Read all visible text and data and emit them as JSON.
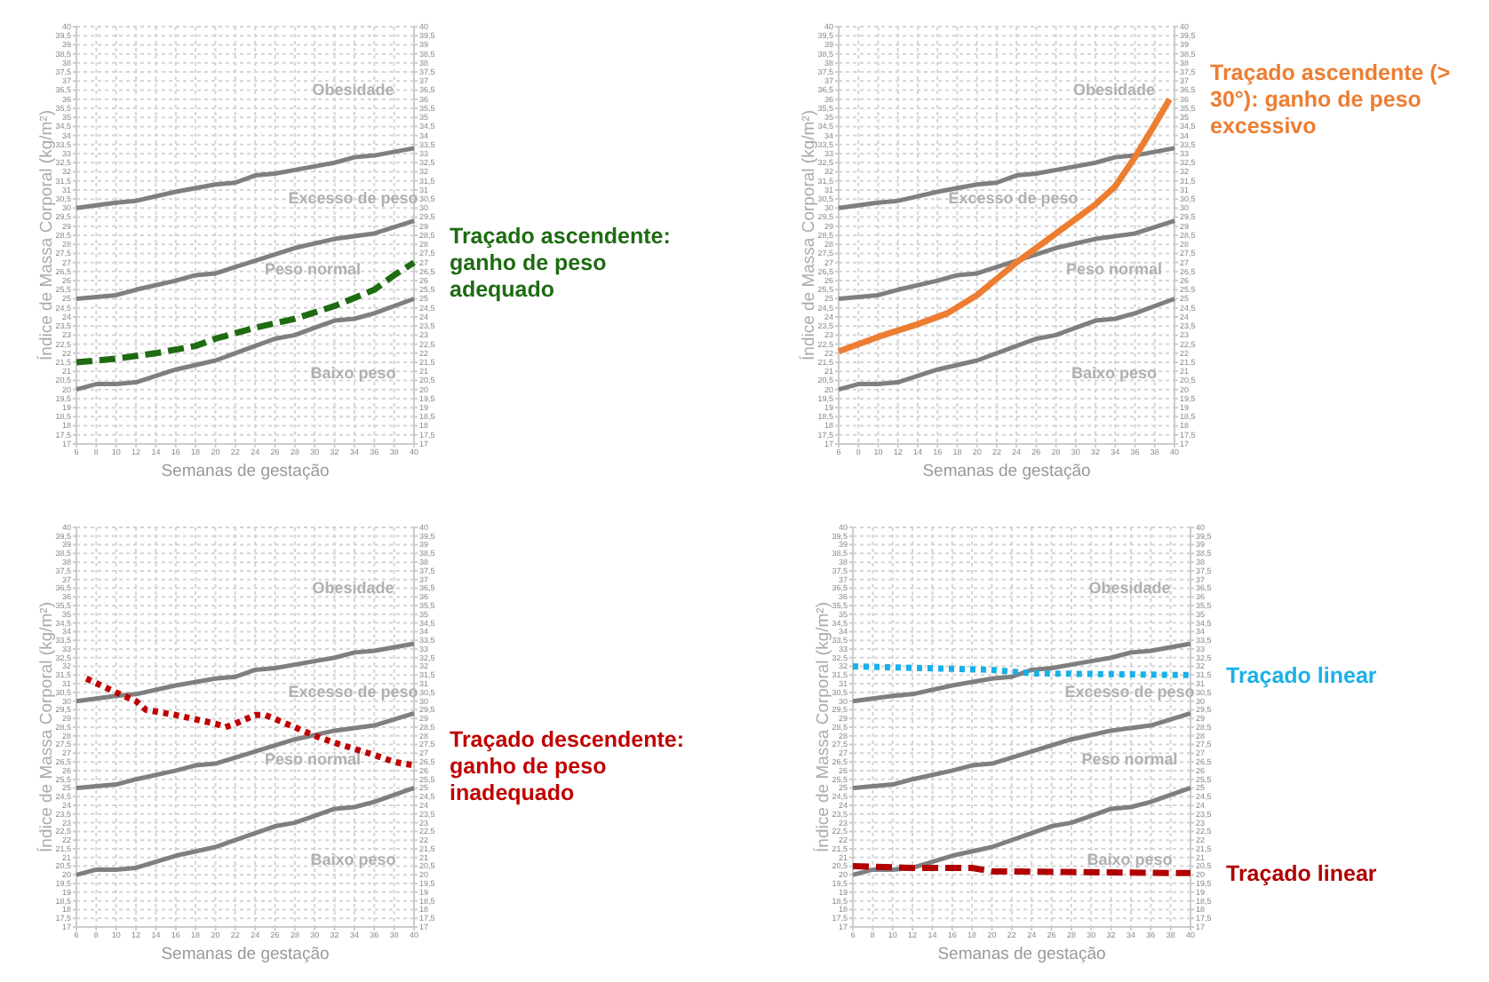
{
  "chart_data": [
    {
      "type": "line",
      "xlabel": "Semanas de gestação",
      "ylabel": "Índice de Massa Corporal (kg/m²)",
      "grid": true,
      "xlim": [
        6,
        40
      ],
      "xticks": [
        6,
        8,
        10,
        12,
        14,
        16,
        18,
        20,
        22,
        24,
        26,
        28,
        30,
        32,
        34,
        36,
        38,
        40
      ],
      "ylim": [
        17,
        40
      ],
      "yticks": [
        17,
        {
          "value": 17.5,
          "label": "17,5"
        },
        18,
        {
          "value": 18.5,
          "label": "18,5"
        },
        19,
        {
          "value": 19.5,
          "label": "19,5"
        },
        20,
        {
          "value": 20.5,
          "label": "20,5"
        },
        21,
        {
          "value": 21.5,
          "label": "21,5"
        },
        22,
        {
          "value": 22.5,
          "label": "22,5"
        },
        23,
        {
          "value": 23.5,
          "label": "23,5"
        },
        24,
        {
          "value": 24.5,
          "label": "24,5"
        },
        25,
        {
          "value": 25.5,
          "label": "25,5"
        },
        26,
        {
          "value": 26.5,
          "label": "26,5"
        },
        27,
        {
          "value": 27.5,
          "label": "27,5"
        },
        28,
        {
          "value": 28.5,
          "label": "28,5"
        },
        29,
        {
          "value": 29.5,
          "label": "29,5"
        },
        30,
        {
          "value": 30.5,
          "label": "30,5"
        },
        31,
        {
          "value": 31.5,
          "label": "31,5"
        },
        32,
        {
          "value": 32.5,
          "label": "32,5"
        },
        33,
        {
          "value": 33.5,
          "label": "33,5"
        },
        34,
        {
          "value": 34.5,
          "label": "34,5"
        },
        35,
        {
          "value": 35.5,
          "label": "35,5"
        },
        36,
        {
          "value": 36.5,
          "label": "36,5"
        },
        37,
        {
          "value": 37.5,
          "label": "37,5"
        },
        38,
        {
          "value": 38.5,
          "label": "38,5"
        },
        39,
        {
          "value": 39.5,
          "label": "39,5"
        },
        40
      ],
      "y2lim": [
        17,
        40
      ],
      "y2ticks": [
        17,
        {
          "value": 17.5,
          "label": "17,5"
        },
        18,
        {
          "value": 18.5,
          "label": "18,5"
        },
        19,
        {
          "value": 19.5,
          "label": "19,5"
        },
        20,
        {
          "value": 20.5,
          "label": "20,5"
        },
        21,
        {
          "value": 21.5,
          "label": "21,5"
        },
        22,
        {
          "value": 22.5,
          "label": "22,5"
        },
        23,
        {
          "value": 23.5,
          "label": "23,5"
        },
        24,
        {
          "value": 24.5,
          "label": "24,5"
        },
        25,
        {
          "value": 25.5,
          "label": "25,5"
        },
        26,
        {
          "value": 26.5,
          "label": "26,5"
        },
        27,
        {
          "value": 27.5,
          "label": "27,5"
        },
        28,
        {
          "value": 28.5,
          "label": "28,5"
        },
        29,
        {
          "value": 29.5,
          "label": "29,5"
        },
        30,
        {
          "value": 30.5,
          "label": "30,5"
        },
        31,
        {
          "value": 31.5,
          "label": "31,5"
        },
        32,
        {
          "value": 32.5,
          "label": "32,5"
        },
        33,
        {
          "value": 33.5,
          "label": "33,5"
        },
        34,
        {
          "value": 34.5,
          "label": "34,5"
        },
        35,
        {
          "value": 35.5,
          "label": "35,5"
        },
        36,
        {
          "value": 36.5,
          "label": "36,5"
        },
        37,
        {
          "value": 37.5,
          "label": "37,5"
        },
        38,
        {
          "value": 38.5,
          "label": "38,5"
        },
        39,
        {
          "value": 39.5,
          "label": "39,5"
        },
        40
      ],
      "annotations": [
        "Obesidade",
        "Excesso de peso",
        "Peso normal",
        "Baixo peso"
      ],
      "series": [
        {
          "color": "#7f7f7f",
          "line_style": "solid",
          "x": [
            6,
            10,
            12,
            16,
            20,
            22,
            24,
            26,
            30,
            32,
            34,
            36,
            40
          ],
          "values": [
            30,
            30.3,
            30.4,
            30.9,
            31.3,
            31.4,
            31.8,
            31.9,
            32.3,
            32.5,
            32.8,
            32.9,
            33.3
          ]
        },
        {
          "color": "#7f7f7f",
          "line_style": "solid",
          "x": [
            6,
            10,
            12,
            16,
            18,
            20,
            24,
            28,
            32,
            36,
            40
          ],
          "values": [
            25,
            25.2,
            25.5,
            26,
            26.3,
            26.4,
            27.1,
            27.8,
            28.3,
            28.6,
            29.3
          ]
        },
        {
          "color": "#7f7f7f",
          "line_style": "solid",
          "x": [
            6,
            8,
            10,
            12,
            16,
            20,
            24,
            26,
            28,
            30,
            32,
            34,
            36,
            40
          ],
          "values": [
            20,
            20.3,
            20.3,
            20.4,
            21.1,
            21.6,
            22.4,
            22.8,
            23,
            23.4,
            23.8,
            23.9,
            24.2,
            25
          ]
        },
        {
          "name": "Traçado ascendente: ganho de peso adequado",
          "color": "#1e6b12",
          "line_style": "dashed",
          "x": [
            6,
            10,
            14,
            18,
            20,
            24,
            28,
            32,
            36,
            38,
            40
          ],
          "values": [
            21.5,
            21.7,
            22,
            22.4,
            22.8,
            23.4,
            23.9,
            24.6,
            25.5,
            26.3,
            27
          ]
        }
      ]
    },
    {
      "type": "line",
      "xlabel": "Semanas de gestação",
      "ylabel": "Índice de Massa Corporal (kg/m²)",
      "grid": true,
      "xlim": [
        6,
        40
      ],
      "xticks": [
        6,
        8,
        10,
        12,
        14,
        16,
        18,
        20,
        22,
        24,
        26,
        28,
        30,
        32,
        34,
        36,
        38,
        40
      ],
      "ylim": [
        17,
        40
      ],
      "yticks": [
        17,
        {
          "value": 17.5,
          "label": "17,5"
        },
        18,
        {
          "value": 18.5,
          "label": "18,5"
        },
        19,
        {
          "value": 19.5,
          "label": "19,5"
        },
        20,
        {
          "value": 20.5,
          "label": "20,5"
        },
        21,
        {
          "value": 21.5,
          "label": "21,5"
        },
        22,
        {
          "value": 22.5,
          "label": "22,5"
        },
        23,
        {
          "value": 23.5,
          "label": "23,5"
        },
        24,
        {
          "value": 24.5,
          "label": "24,5"
        },
        25,
        {
          "value": 25.5,
          "label": "25,5"
        },
        26,
        {
          "value": 26.5,
          "label": "26,5"
        },
        27,
        {
          "value": 27.5,
          "label": "27,5"
        },
        28,
        {
          "value": 28.5,
          "label": "28,5"
        },
        29,
        {
          "value": 29.5,
          "label": "29,5"
        },
        30,
        {
          "value": 30.5,
          "label": "30,5"
        },
        31,
        {
          "value": 31.5,
          "label": "31,5"
        },
        32,
        {
          "value": 32.5,
          "label": "32,5"
        },
        33,
        {
          "value": 33.5,
          "label": "33,5"
        },
        34,
        {
          "value": 34.5,
          "label": "34,5"
        },
        35,
        {
          "value": 35.5,
          "label": "35,5"
        },
        36,
        {
          "value": 36.5,
          "label": "36,5"
        },
        37,
        {
          "value": 37.5,
          "label": "37,5"
        },
        38,
        {
          "value": 38.5,
          "label": "38,5"
        },
        39,
        {
          "value": 39.5,
          "label": "39,5"
        },
        40
      ],
      "y2lim": [
        17,
        40
      ],
      "y2ticks": [
        17,
        {
          "value": 17.5,
          "label": "17,5"
        },
        18,
        {
          "value": 18.5,
          "label": "18,5"
        },
        19,
        {
          "value": 19.5,
          "label": "19,5"
        },
        20,
        {
          "value": 20.5,
          "label": "20,5"
        },
        21,
        {
          "value": 21.5,
          "label": "21,5"
        },
        22,
        {
          "value": 22.5,
          "label": "22,5"
        },
        23,
        {
          "value": 23.5,
          "label": "23,5"
        },
        24,
        {
          "value": 24.5,
          "label": "24,5"
        },
        25,
        {
          "value": 25.5,
          "label": "25,5"
        },
        26,
        {
          "value": 26.5,
          "label": "26,5"
        },
        27,
        {
          "value": 27.5,
          "label": "27,5"
        },
        28,
        {
          "value": 28.5,
          "label": "28,5"
        },
        29,
        {
          "value": 29.5,
          "label": "29,5"
        },
        30,
        {
          "value": 30.5,
          "label": "30,5"
        },
        31,
        {
          "value": 31.5,
          "label": "31,5"
        },
        32,
        {
          "value": 32.5,
          "label": "32,5"
        },
        33,
        {
          "value": 33.5,
          "label": "33,5"
        },
        34,
        {
          "value": 34.5,
          "label": "34,5"
        },
        35,
        {
          "value": 35.5,
          "label": "35,5"
        },
        36,
        {
          "value": 36.5,
          "label": "36,5"
        },
        37,
        {
          "value": 37.5,
          "label": "37,5"
        },
        38,
        {
          "value": 38.5,
          "label": "38,5"
        },
        39,
        {
          "value": 39.5,
          "label": "39,5"
        },
        40
      ],
      "annotations": [
        "Obesidade",
        "Excesso de peso",
        "Peso normal",
        "Baixo peso"
      ],
      "series": [
        {
          "color": "#7f7f7f",
          "line_style": "solid",
          "x": [
            6,
            10,
            12,
            16,
            20,
            22,
            24,
            26,
            30,
            32,
            34,
            36,
            40
          ],
          "values": [
            30,
            30.3,
            30.4,
            30.9,
            31.3,
            31.4,
            31.8,
            31.9,
            32.3,
            32.5,
            32.8,
            32.9,
            33.3
          ]
        },
        {
          "color": "#7f7f7f",
          "line_style": "solid",
          "x": [
            6,
            10,
            12,
            16,
            18,
            20,
            24,
            28,
            32,
            36,
            40
          ],
          "values": [
            25,
            25.2,
            25.5,
            26,
            26.3,
            26.4,
            27.1,
            27.8,
            28.3,
            28.6,
            29.3
          ]
        },
        {
          "color": "#7f7f7f",
          "line_style": "solid",
          "x": [
            6,
            8,
            10,
            12,
            16,
            20,
            24,
            26,
            28,
            30,
            32,
            34,
            36,
            40
          ],
          "values": [
            20,
            20.3,
            20.3,
            20.4,
            21.1,
            21.6,
            22.4,
            22.8,
            23,
            23.4,
            23.8,
            23.9,
            24.2,
            25
          ]
        },
        {
          "name": "Traçado ascendente (> 30°): ganho de peso excessivo",
          "color": "#ed7d31",
          "line_style": "solid",
          "x": [
            6,
            10,
            14,
            17,
            20,
            24,
            28,
            32,
            34,
            36,
            38,
            39.5
          ],
          "values": [
            22.1,
            22.9,
            23.6,
            24.2,
            25.2,
            27,
            28.6,
            30.2,
            31.2,
            32.8,
            34.6,
            36
          ]
        }
      ]
    },
    {
      "type": "line",
      "xlabel": "Semanas de gestação",
      "ylabel": "Índice de Massa Corporal (kg/m²)",
      "grid": true,
      "xlim": [
        6,
        40
      ],
      "xticks": [
        6,
        8,
        10,
        12,
        14,
        16,
        18,
        20,
        22,
        24,
        26,
        28,
        30,
        32,
        34,
        36,
        38,
        40
      ],
      "ylim": [
        17,
        40
      ],
      "yticks": [
        17,
        {
          "value": 17.5,
          "label": "17,5"
        },
        18,
        {
          "value": 18.5,
          "label": "18,5"
        },
        19,
        {
          "value": 19.5,
          "label": "19,5"
        },
        20,
        {
          "value": 20.5,
          "label": "20,5"
        },
        21,
        {
          "value": 21.5,
          "label": "21,5"
        },
        22,
        {
          "value": 22.5,
          "label": "22,5"
        },
        23,
        {
          "value": 23.5,
          "label": "23,5"
        },
        24,
        {
          "value": 24.5,
          "label": "24,5"
        },
        25,
        {
          "value": 25.5,
          "label": "25,5"
        },
        26,
        {
          "value": 26.5,
          "label": "26,5"
        },
        27,
        {
          "value": 27.5,
          "label": "27,5"
        },
        28,
        {
          "value": 28.5,
          "label": "28,5"
        },
        29,
        {
          "value": 29.5,
          "label": "29,5"
        },
        30,
        {
          "value": 30.5,
          "label": "30,5"
        },
        31,
        {
          "value": 31.5,
          "label": "31,5"
        },
        32,
        {
          "value": 32.5,
          "label": "32,5"
        },
        33,
        {
          "value": 33.5,
          "label": "33,5"
        },
        34,
        {
          "value": 34.5,
          "label": "34,5"
        },
        35,
        {
          "value": 35.5,
          "label": "35,5"
        },
        36,
        {
          "value": 36.5,
          "label": "36,5"
        },
        37,
        {
          "value": 37.5,
          "label": "37,5"
        },
        38,
        {
          "value": 38.5,
          "label": "38,5"
        },
        39,
        {
          "value": 39.5,
          "label": "39,5"
        },
        40
      ],
      "y2lim": [
        17,
        40
      ],
      "y2ticks": [
        17,
        {
          "value": 17.5,
          "label": "17,5"
        },
        18,
        {
          "value": 18.5,
          "label": "18,5"
        },
        19,
        {
          "value": 19.5,
          "label": "19,5"
        },
        20,
        {
          "value": 20.5,
          "label": "20,5"
        },
        21,
        {
          "value": 21.5,
          "label": "21,5"
        },
        22,
        {
          "value": 22.5,
          "label": "22,5"
        },
        23,
        {
          "value": 23.5,
          "label": "23,5"
        },
        24,
        {
          "value": 24.5,
          "label": "24,5"
        },
        25,
        {
          "value": 25.5,
          "label": "25,5"
        },
        26,
        {
          "value": 26.5,
          "label": "26,5"
        },
        27,
        {
          "value": 27.5,
          "label": "27,5"
        },
        28,
        {
          "value": 28.5,
          "label": "28,5"
        },
        29,
        {
          "value": 29.5,
          "label": "29,5"
        },
        30,
        {
          "value": 30.5,
          "label": "30,5"
        },
        31,
        {
          "value": 31.5,
          "label": "31,5"
        },
        32,
        {
          "value": 32.5,
          "label": "32,5"
        },
        33,
        {
          "value": 33.5,
          "label": "33,5"
        },
        34,
        {
          "value": 34.5,
          "label": "34,5"
        },
        35,
        {
          "value": 35.5,
          "label": "35,5"
        },
        36,
        {
          "value": 36.5,
          "label": "36,5"
        },
        37,
        {
          "value": 37.5,
          "label": "37,5"
        },
        38,
        {
          "value": 38.5,
          "label": "38,5"
        },
        39,
        {
          "value": 39.5,
          "label": "39,5"
        },
        40
      ],
      "annotations": [
        "Obesidade",
        "Excesso de peso",
        "Peso normal",
        "Baixo peso"
      ],
      "series": [
        {
          "color": "#7f7f7f",
          "line_style": "solid",
          "x": [
            6,
            10,
            12,
            16,
            20,
            22,
            24,
            26,
            30,
            32,
            34,
            36,
            40
          ],
          "values": [
            30,
            30.3,
            30.4,
            30.9,
            31.3,
            31.4,
            31.8,
            31.9,
            32.3,
            32.5,
            32.8,
            32.9,
            33.3
          ]
        },
        {
          "color": "#7f7f7f",
          "line_style": "solid",
          "x": [
            6,
            10,
            12,
            16,
            18,
            20,
            24,
            28,
            32,
            36,
            40
          ],
          "values": [
            25,
            25.2,
            25.5,
            26,
            26.3,
            26.4,
            27.1,
            27.8,
            28.3,
            28.6,
            29.3
          ]
        },
        {
          "color": "#7f7f7f",
          "line_style": "solid",
          "x": [
            6,
            8,
            10,
            12,
            16,
            20,
            24,
            26,
            28,
            30,
            32,
            34,
            36,
            40
          ],
          "values": [
            20,
            20.3,
            20.3,
            20.4,
            21.1,
            21.6,
            22.4,
            22.8,
            23,
            23.4,
            23.8,
            23.9,
            24.2,
            25
          ]
        },
        {
          "name": "Traçado descendente: ganho de peso inadequado",
          "color": "#c00000",
          "line_style": "dotted",
          "x": [
            7,
            10,
            12,
            13,
            16,
            20,
            21,
            22,
            24,
            25,
            28,
            30,
            32,
            36,
            38,
            40
          ],
          "values": [
            31.3,
            30.5,
            30,
            29.5,
            29.2,
            28.7,
            28.5,
            28.7,
            29.2,
            29.2,
            28.5,
            28,
            27.6,
            26.9,
            26.5,
            26.3
          ]
        }
      ]
    },
    {
      "type": "line",
      "xlabel": "Semanas de gestação",
      "ylabel": "Índice de Massa Corporal (kg/m²)",
      "grid": true,
      "xlim": [
        6,
        40
      ],
      "xticks": [
        6,
        8,
        10,
        12,
        14,
        16,
        18,
        20,
        22,
        24,
        26,
        28,
        30,
        32,
        34,
        36,
        38,
        40
      ],
      "ylim": [
        17,
        40
      ],
      "yticks": [
        17,
        {
          "value": 17.5,
          "label": "17,5"
        },
        18,
        {
          "value": 18.5,
          "label": "18,5"
        },
        19,
        {
          "value": 19.5,
          "label": "19,5"
        },
        20,
        {
          "value": 20.5,
          "label": "20,5"
        },
        21,
        {
          "value": 21.5,
          "label": "21,5"
        },
        22,
        {
          "value": 22.5,
          "label": "22,5"
        },
        23,
        {
          "value": 23.5,
          "label": "23,5"
        },
        24,
        {
          "value": 24.5,
          "label": "24,5"
        },
        25,
        {
          "value": 25.5,
          "label": "25,5"
        },
        26,
        {
          "value": 26.5,
          "label": "26,5"
        },
        27,
        {
          "value": 27.5,
          "label": "27,5"
        },
        28,
        {
          "value": 28.5,
          "label": "28,5"
        },
        29,
        {
          "value": 29.5,
          "label": "29,5"
        },
        30,
        {
          "value": 30.5,
          "label": "30,5"
        },
        31,
        {
          "value": 31.5,
          "label": "31,5"
        },
        32,
        {
          "value": 32.5,
          "label": "32,5"
        },
        33,
        {
          "value": 33.5,
          "label": "33,5"
        },
        34,
        {
          "value": 34.5,
          "label": "34,5"
        },
        35,
        {
          "value": 35.5,
          "label": "35,5"
        },
        36,
        {
          "value": 36.5,
          "label": "36,5"
        },
        37,
        {
          "value": 37.5,
          "label": "37,5"
        },
        38,
        {
          "value": 38.5,
          "label": "38,5"
        },
        39,
        {
          "value": 39.5,
          "label": "39,5"
        },
        40
      ],
      "y2lim": [
        17,
        40
      ],
      "y2ticks": [
        17,
        {
          "value": 17.5,
          "label": "17,5"
        },
        18,
        {
          "value": 18.5,
          "label": "18,5"
        },
        19,
        {
          "value": 19.5,
          "label": "19,5"
        },
        20,
        {
          "value": 20.5,
          "label": "20,5"
        },
        21,
        {
          "value": 21.5,
          "label": "21,5"
        },
        22,
        {
          "value": 22.5,
          "label": "22,5"
        },
        23,
        {
          "value": 23.5,
          "label": "23,5"
        },
        24,
        {
          "value": 24.5,
          "label": "24,5"
        },
        25,
        {
          "value": 25.5,
          "label": "25,5"
        },
        26,
        {
          "value": 26.5,
          "label": "26,5"
        },
        27,
        {
          "value": 27.5,
          "label": "27,5"
        },
        28,
        {
          "value": 28.5,
          "label": "28,5"
        },
        29,
        {
          "value": 29.5,
          "label": "29,5"
        },
        30,
        {
          "value": 30.5,
          "label": "30,5"
        },
        31,
        {
          "value": 31.5,
          "label": "31,5"
        },
        32,
        {
          "value": 32.5,
          "label": "32,5"
        },
        33,
        {
          "value": 33.5,
          "label": "33,5"
        },
        34,
        {
          "value": 34.5,
          "label": "34,5"
        },
        35,
        {
          "value": 35.5,
          "label": "35,5"
        },
        36,
        {
          "value": 36.5,
          "label": "36,5"
        },
        37,
        {
          "value": 37.5,
          "label": "37,5"
        },
        38,
        {
          "value": 38.5,
          "label": "38,5"
        },
        39,
        {
          "value": 39.5,
          "label": "39,5"
        },
        40
      ],
      "annotations": [
        "Obesidade",
        "Excesso de peso",
        "Peso normal",
        "Baixo peso"
      ],
      "series": [
        {
          "color": "#7f7f7f",
          "line_style": "solid",
          "x": [
            6,
            10,
            12,
            16,
            20,
            22,
            24,
            26,
            30,
            32,
            34,
            36,
            40
          ],
          "values": [
            30,
            30.3,
            30.4,
            30.9,
            31.3,
            31.4,
            31.8,
            31.9,
            32.3,
            32.5,
            32.8,
            32.9,
            33.3
          ]
        },
        {
          "color": "#7f7f7f",
          "line_style": "solid",
          "x": [
            6,
            10,
            12,
            16,
            18,
            20,
            24,
            28,
            32,
            36,
            40
          ],
          "values": [
            25,
            25.2,
            25.5,
            26,
            26.3,
            26.4,
            27.1,
            27.8,
            28.3,
            28.6,
            29.3
          ]
        },
        {
          "color": "#7f7f7f",
          "line_style": "solid",
          "x": [
            6,
            8,
            10,
            12,
            16,
            20,
            24,
            26,
            28,
            30,
            32,
            34,
            36,
            40
          ],
          "values": [
            20,
            20.3,
            20.3,
            20.4,
            21.1,
            21.6,
            22.4,
            22.8,
            23,
            23.4,
            23.8,
            23.9,
            24.2,
            25
          ]
        },
        {
          "name": "Traçado linear",
          "color": "#1ab0e8",
          "line_style": "dotted",
          "x": [
            6,
            20,
            24,
            40
          ],
          "values": [
            32,
            31.8,
            31.6,
            31.5
          ]
        },
        {
          "name": "Traçado linear",
          "color": "#b00000",
          "line_style": "dashed",
          "x": [
            6,
            12,
            18,
            20,
            40
          ],
          "values": [
            20.5,
            20.4,
            20.4,
            20.2,
            20.1
          ]
        }
      ]
    }
  ]
}
